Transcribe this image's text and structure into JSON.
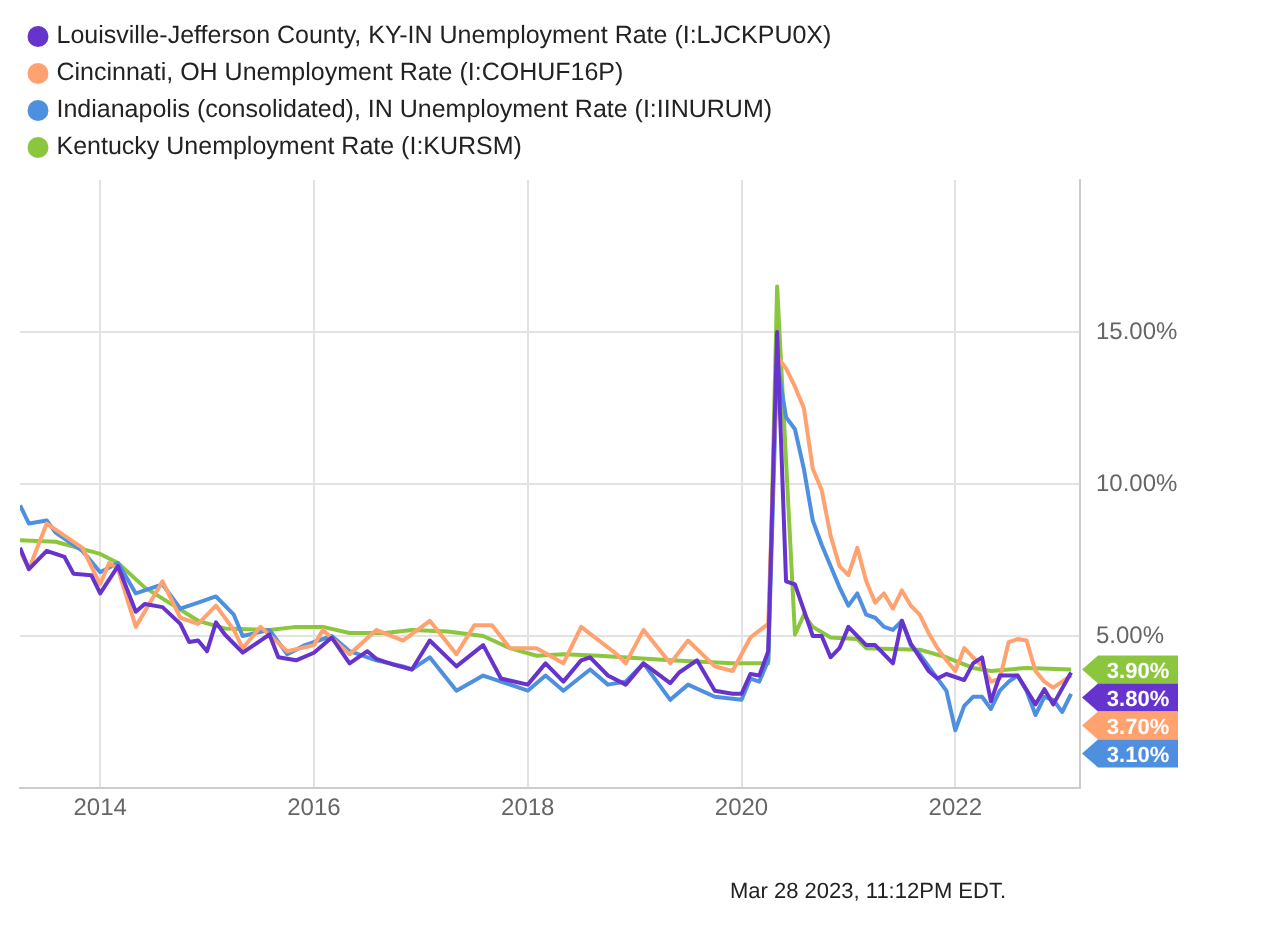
{
  "chart_data": {
    "type": "line",
    "xlim": [
      "2013-04",
      "2023-03"
    ],
    "xticks": [
      "2014",
      "2016",
      "2018",
      "2020",
      "2022"
    ],
    "ylim": [
      0,
      20
    ],
    "yticks": [
      {
        "value": 5,
        "label": "5.00%"
      },
      {
        "value": 10,
        "label": "10.00%"
      },
      {
        "value": 15,
        "label": "15.00%"
      }
    ],
    "grid": true,
    "legend": "top left",
    "marker": "none",
    "line_style": "solid",
    "annotations": [
      "Mar 28 2023, 11:12PM EDT."
    ],
    "series": [
      {
        "name": "Louisville-Jefferson County, KY-IN Unemployment Rate (I:LJCKPU0X)",
        "color": "#6633cc",
        "x": [
          "2013-04",
          "2013-05",
          "2013-07",
          "2013-09",
          "2013-10",
          "2013-12",
          "2014-01",
          "2014-03",
          "2014-05",
          "2014-06",
          "2014-08",
          "2014-10",
          "2014-11",
          "2014-12",
          "2015-01",
          "2015-02",
          "2015-03",
          "2015-05",
          "2015-07",
          "2015-08",
          "2015-09",
          "2015-11",
          "2016-01",
          "2016-03",
          "2016-05",
          "2016-07",
          "2016-08",
          "2016-10",
          "2016-12",
          "2017-02",
          "2017-05",
          "2017-08",
          "2017-10",
          "2018-01",
          "2018-03",
          "2018-05",
          "2018-07",
          "2018-08",
          "2018-10",
          "2018-12",
          "2019-02",
          "2019-05",
          "2019-06",
          "2019-08",
          "2019-10",
          "2019-12",
          "2020-01",
          "2020-02",
          "2020-03",
          "2020-04",
          "2020-05",
          "2020-06",
          "2020-07",
          "2020-09",
          "2020-10",
          "2020-11",
          "2020-12",
          "2021-01",
          "2021-03",
          "2021-04",
          "2021-06",
          "2021-07",
          "2021-08",
          "2021-10",
          "2021-11",
          "2021-12",
          "2022-02",
          "2022-03",
          "2022-04",
          "2022-05",
          "2022-06",
          "2022-08",
          "2022-10",
          "2022-11",
          "2022-12",
          "2023-02"
        ],
        "values": [
          7.9,
          7.2,
          7.8,
          7.6,
          7.05,
          7.0,
          6.4,
          7.3,
          5.8,
          6.05,
          5.95,
          5.4,
          4.8,
          4.85,
          4.5,
          5.45,
          5.05,
          4.45,
          4.85,
          5.05,
          4.3,
          4.2,
          4.45,
          4.95,
          4.1,
          4.5,
          4.25,
          4.05,
          3.9,
          4.85,
          4.0,
          4.7,
          3.6,
          3.4,
          4.1,
          3.5,
          4.2,
          4.3,
          3.7,
          3.4,
          4.1,
          3.45,
          3.8,
          4.2,
          3.2,
          3.1,
          3.1,
          3.75,
          3.7,
          4.5,
          15.0,
          6.8,
          6.7,
          5.0,
          5.0,
          4.3,
          4.6,
          5.3,
          4.7,
          4.7,
          4.1,
          5.5,
          4.75,
          3.85,
          3.6,
          3.75,
          3.55,
          4.1,
          4.3,
          2.85,
          3.7,
          3.7,
          2.75,
          3.25,
          2.75,
          3.8
        ],
        "value_labels": [
          null,
          null,
          null,
          null,
          null,
          null,
          null,
          null,
          null,
          null,
          null,
          null,
          null,
          null,
          null,
          null,
          null,
          null,
          null,
          null,
          null,
          null,
          null,
          null,
          null,
          null,
          null,
          null,
          null,
          null,
          null,
          null,
          null,
          null,
          null,
          null,
          null,
          null,
          null,
          null,
          null,
          null,
          null,
          null,
          null,
          null,
          null,
          null,
          null,
          null,
          null,
          null,
          null,
          null,
          null,
          null,
          null,
          null,
          null,
          null,
          null,
          null,
          null,
          null,
          null,
          null,
          null,
          null,
          null,
          null,
          null,
          null,
          null,
          null,
          null,
          "3.80%"
        ]
      },
      {
        "name": "Cincinnati, OH Unemployment Rate (I:COHUF16P)",
        "color": "#ffa270",
        "x": [
          "2013-04",
          "2013-05",
          "2013-07",
          "2013-08",
          "2013-11",
          "2014-01",
          "2014-02",
          "2014-03",
          "2014-05",
          "2014-08",
          "2014-10",
          "2014-12",
          "2015-02",
          "2015-04",
          "2015-05",
          "2015-07",
          "2015-10",
          "2016-01",
          "2016-02",
          "2016-05",
          "2016-08",
          "2016-11",
          "2017-02",
          "2017-05",
          "2017-07",
          "2017-09",
          "2017-11",
          "2018-02",
          "2018-05",
          "2018-07",
          "2018-11",
          "2018-12",
          "2019-02",
          "2019-05",
          "2019-07",
          "2019-10",
          "2019-12",
          "2020-02",
          "2020-04",
          "2020-05",
          "2020-06",
          "2020-07",
          "2020-08",
          "2020-09",
          "2020-10",
          "2020-11",
          "2020-12",
          "2021-01",
          "2021-02",
          "2021-03",
          "2021-04",
          "2021-05",
          "2021-06",
          "2021-07",
          "2021-08",
          "2021-09",
          "2021-10",
          "2021-11",
          "2021-12",
          "2022-01",
          "2022-02",
          "2022-03",
          "2022-04",
          "2022-05",
          "2022-06",
          "2022-07",
          "2022-08",
          "2022-09",
          "2022-10",
          "2022-11",
          "2022-12",
          "2023-01",
          "2023-02"
        ],
        "values": [
          7.8,
          7.2,
          8.7,
          8.5,
          7.9,
          6.7,
          7.4,
          7.2,
          5.3,
          6.8,
          5.6,
          5.4,
          6.0,
          5.2,
          4.6,
          5.3,
          4.5,
          4.7,
          5.2,
          4.4,
          5.2,
          4.85,
          5.5,
          4.4,
          5.35,
          5.35,
          4.6,
          4.6,
          4.1,
          5.3,
          4.4,
          4.1,
          5.2,
          4.1,
          4.85,
          4.0,
          3.85,
          4.95,
          5.4,
          14.2,
          13.8,
          13.2,
          12.5,
          10.5,
          9.8,
          8.3,
          7.3,
          7.0,
          7.9,
          6.8,
          6.1,
          6.4,
          5.9,
          6.5,
          6.0,
          5.7,
          5.1,
          4.6,
          4.2,
          3.85,
          4.6,
          4.3,
          4.0,
          3.5,
          3.6,
          4.8,
          4.9,
          4.85,
          3.85,
          3.5,
          3.3,
          3.5,
          3.7
        ],
        "value_labels": [
          null,
          null,
          null,
          null,
          null,
          null,
          null,
          null,
          null,
          null,
          null,
          null,
          null,
          null,
          null,
          null,
          null,
          null,
          null,
          null,
          null,
          null,
          null,
          null,
          null,
          null,
          null,
          null,
          null,
          null,
          null,
          null,
          null,
          null,
          null,
          null,
          null,
          null,
          null,
          null,
          null,
          null,
          null,
          null,
          null,
          null,
          null,
          null,
          null,
          null,
          null,
          null,
          null,
          null,
          null,
          null,
          null,
          null,
          null,
          null,
          null,
          null,
          null,
          null,
          null,
          null,
          null,
          null,
          null,
          null,
          null,
          null,
          "3.70%"
        ]
      },
      {
        "name": "Indianapolis (consolidated), IN Unemployment Rate (I:IINURUM)",
        "color": "#4f8fe0",
        "x": [
          "2013-04",
          "2013-05",
          "2013-07",
          "2013-08",
          "2013-11",
          "2014-01",
          "2014-03",
          "2014-05",
          "2014-08",
          "2014-10",
          "2014-12",
          "2015-02",
          "2015-04",
          "2015-05",
          "2015-08",
          "2015-10",
          "2015-12",
          "2016-03",
          "2016-05",
          "2016-08",
          "2016-11",
          "2016-12",
          "2017-02",
          "2017-05",
          "2017-08",
          "2017-10",
          "2018-01",
          "2018-03",
          "2018-05",
          "2018-08",
          "2018-10",
          "2018-12",
          "2019-02",
          "2019-05",
          "2019-07",
          "2019-10",
          "2020-01",
          "2020-02",
          "2020-03",
          "2020-04",
          "2020-05",
          "2020-06",
          "2020-07",
          "2020-08",
          "2020-09",
          "2020-10",
          "2020-11",
          "2020-12",
          "2021-01",
          "2021-02",
          "2021-03",
          "2021-04",
          "2021-05",
          "2021-06",
          "2021-07",
          "2021-08",
          "2021-09",
          "2021-10",
          "2021-11",
          "2021-12",
          "2022-01",
          "2022-02",
          "2022-03",
          "2022-04",
          "2022-05",
          "2022-06",
          "2022-07",
          "2022-08",
          "2022-09",
          "2022-10",
          "2022-11",
          "2022-12",
          "2023-01",
          "2023-02"
        ],
        "values": [
          9.3,
          8.7,
          8.8,
          8.4,
          7.8,
          7.1,
          7.4,
          6.4,
          6.7,
          5.9,
          6.1,
          6.3,
          5.7,
          5.0,
          5.2,
          4.4,
          4.7,
          5.0,
          4.5,
          4.2,
          4.0,
          3.9,
          4.3,
          3.2,
          3.7,
          3.5,
          3.2,
          3.7,
          3.2,
          3.9,
          3.4,
          3.5,
          4.1,
          2.9,
          3.4,
          3.0,
          2.9,
          3.6,
          3.5,
          4.2,
          14.0,
          12.2,
          11.8,
          10.5,
          8.8,
          8.0,
          7.3,
          6.6,
          6.0,
          6.4,
          5.7,
          5.6,
          5.3,
          5.2,
          5.5,
          4.7,
          4.4,
          4.0,
          3.6,
          3.2,
          1.9,
          2.7,
          3.0,
          3.0,
          2.6,
          3.2,
          3.5,
          3.7,
          3.2,
          2.4,
          3.0,
          2.9,
          2.5,
          3.1
        ],
        "value_labels": [
          null,
          null,
          null,
          null,
          null,
          null,
          null,
          null,
          null,
          null,
          null,
          null,
          null,
          null,
          null,
          null,
          null,
          null,
          null,
          null,
          null,
          null,
          null,
          null,
          null,
          null,
          null,
          null,
          null,
          null,
          null,
          null,
          null,
          null,
          null,
          null,
          null,
          null,
          null,
          null,
          null,
          null,
          null,
          null,
          null,
          null,
          null,
          null,
          null,
          null,
          null,
          null,
          null,
          null,
          null,
          null,
          null,
          null,
          null,
          null,
          null,
          null,
          null,
          null,
          null,
          null,
          null,
          null,
          null,
          null,
          null,
          null,
          null,
          "3.10%"
        ]
      },
      {
        "name": "Kentucky Unemployment Rate (I:KURSM)",
        "color": "#8cc63f",
        "x": [
          "2013-04",
          "2013-08",
          "2014-01",
          "2014-03",
          "2014-06",
          "2014-09",
          "2014-12",
          "2015-03",
          "2015-08",
          "2015-11",
          "2016-02",
          "2016-05",
          "2016-09",
          "2016-12",
          "2017-04",
          "2017-08",
          "2017-11",
          "2018-02",
          "2018-05",
          "2018-09",
          "2019-05",
          "2019-12",
          "2020-04",
          "2020-05",
          "2020-07",
          "2020-08",
          "2020-09",
          "2020-11",
          "2021-02",
          "2021-03",
          "2021-09",
          "2021-12",
          "2022-03",
          "2022-05",
          "2022-09",
          "2023-02"
        ],
        "values": [
          8.15,
          8.1,
          7.7,
          7.4,
          6.6,
          6.05,
          5.5,
          5.25,
          5.2,
          5.3,
          5.3,
          5.1,
          5.1,
          5.2,
          5.15,
          5.0,
          4.6,
          4.35,
          4.4,
          4.35,
          4.2,
          4.1,
          4.1,
          16.5,
          5.05,
          5.7,
          5.3,
          4.95,
          4.9,
          4.6,
          4.55,
          4.3,
          3.95,
          3.85,
          3.95,
          3.9
        ],
        "value_labels": [
          null,
          null,
          null,
          null,
          null,
          null,
          null,
          null,
          null,
          null,
          null,
          null,
          null,
          null,
          null,
          null,
          null,
          null,
          null,
          null,
          null,
          null,
          null,
          null,
          null,
          null,
          null,
          null,
          null,
          null,
          null,
          null,
          null,
          null,
          null,
          "3.90%"
        ]
      }
    ]
  }
}
